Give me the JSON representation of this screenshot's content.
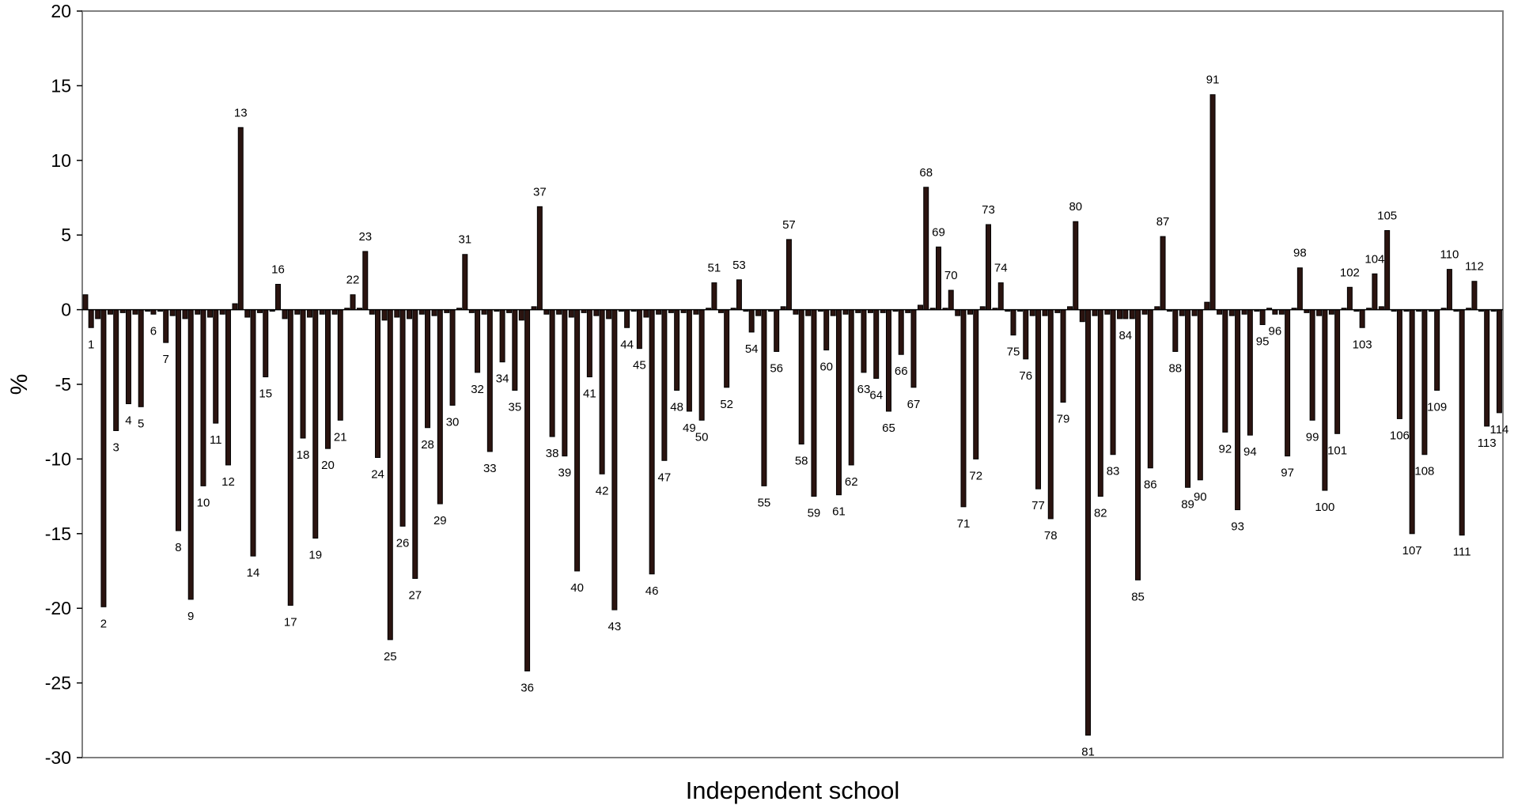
{
  "chart_data": {
    "type": "bar",
    "title": "",
    "xlabel": "Independent school",
    "ylabel": "%",
    "ylim": [
      -30,
      20
    ],
    "y_ticks": [
      20,
      15,
      10,
      5,
      0,
      -5,
      -10,
      -15,
      -20,
      -25,
      -30
    ],
    "grid": false,
    "legend": "none",
    "bar_color": "#2b1410",
    "bar_stroke": "#000000",
    "label_for_school": "value",
    "schools": [
      {
        "label": "1",
        "minor": 1.0,
        "value": -1.2
      },
      {
        "label": "2",
        "minor": -0.6,
        "value": -19.9
      },
      {
        "label": "3",
        "minor": -0.3,
        "value": -8.1
      },
      {
        "label": "4",
        "minor": -0.2,
        "value": -6.3
      },
      {
        "label": "5",
        "minor": -0.3,
        "value": -6.5
      },
      {
        "label": "6",
        "minor": -0.1,
        "value": -0.3
      },
      {
        "label": "7",
        "minor": -0.1,
        "value": -2.2
      },
      {
        "label": "8",
        "minor": -0.4,
        "value": -14.8
      },
      {
        "label": "9",
        "minor": -0.6,
        "value": -19.4
      },
      {
        "label": "10",
        "minor": -0.3,
        "value": -11.8
      },
      {
        "label": "11",
        "minor": -0.5,
        "value": -7.6
      },
      {
        "label": "12",
        "minor": -0.3,
        "value": -10.4
      },
      {
        "label": "13",
        "minor": 0.4,
        "value": 12.2
      },
      {
        "label": "14",
        "minor": -0.5,
        "value": -16.5
      },
      {
        "label": "15",
        "minor": -0.2,
        "value": -4.5
      },
      {
        "label": "16",
        "minor": -0.1,
        "value": 1.7
      },
      {
        "label": "17",
        "minor": -0.6,
        "value": -19.8
      },
      {
        "label": "18",
        "minor": -0.3,
        "value": -8.6
      },
      {
        "label": "19",
        "minor": -0.5,
        "value": -15.3
      },
      {
        "label": "20",
        "minor": -0.3,
        "value": -9.3
      },
      {
        "label": "21",
        "minor": -0.3,
        "value": -7.4
      },
      {
        "label": "22",
        "minor": 0.1,
        "value": 1.0
      },
      {
        "label": "23",
        "minor": 0.1,
        "value": 3.9
      },
      {
        "label": "24",
        "minor": -0.3,
        "value": -9.9
      },
      {
        "label": "25",
        "minor": -0.7,
        "value": -22.1
      },
      {
        "label": "26",
        "minor": -0.5,
        "value": -14.5
      },
      {
        "label": "27",
        "minor": -0.6,
        "value": -18.0
      },
      {
        "label": "28",
        "minor": -0.3,
        "value": -7.9
      },
      {
        "label": "29",
        "minor": -0.4,
        "value": -13.0
      },
      {
        "label": "30",
        "minor": -0.2,
        "value": -6.4
      },
      {
        "label": "31",
        "minor": 0.1,
        "value": 3.7
      },
      {
        "label": "32",
        "minor": -0.2,
        "value": -4.2
      },
      {
        "label": "33",
        "minor": -0.3,
        "value": -9.5
      },
      {
        "label": "34",
        "minor": -0.1,
        "value": -3.5
      },
      {
        "label": "35",
        "minor": -0.2,
        "value": -5.4
      },
      {
        "label": "36",
        "minor": -0.7,
        "value": -24.2
      },
      {
        "label": "37",
        "minor": 0.2,
        "value": 6.9
      },
      {
        "label": "38",
        "minor": -0.3,
        "value": -8.5
      },
      {
        "label": "39",
        "minor": -0.3,
        "value": -9.8
      },
      {
        "label": "40",
        "minor": -0.5,
        "value": -17.5
      },
      {
        "label": "41",
        "minor": -0.2,
        "value": -4.5
      },
      {
        "label": "42",
        "minor": -0.4,
        "value": -11.0
      },
      {
        "label": "43",
        "minor": -0.6,
        "value": -20.1
      },
      {
        "label": "44",
        "minor": -0.1,
        "value": -1.2
      },
      {
        "label": "45",
        "minor": -0.1,
        "value": -2.6
      },
      {
        "label": "46",
        "minor": -0.5,
        "value": -17.7
      },
      {
        "label": "47",
        "minor": -0.3,
        "value": -10.1
      },
      {
        "label": "48",
        "minor": -0.2,
        "value": -5.4
      },
      {
        "label": "49",
        "minor": -0.2,
        "value": -6.8
      },
      {
        "label": "50",
        "minor": -0.3,
        "value": -7.4
      },
      {
        "label": "51",
        "minor": 0.1,
        "value": 1.8
      },
      {
        "label": "52",
        "minor": -0.2,
        "value": -5.2
      },
      {
        "label": "53",
        "minor": 0.1,
        "value": 2.0
      },
      {
        "label": "54",
        "minor": -0.1,
        "value": -1.5
      },
      {
        "label": "55",
        "minor": -0.4,
        "value": -11.8
      },
      {
        "label": "56",
        "minor": -0.1,
        "value": -2.8
      },
      {
        "label": "57",
        "minor": 0.2,
        "value": 4.7
      },
      {
        "label": "58",
        "minor": -0.3,
        "value": -9.0
      },
      {
        "label": "59",
        "minor": -0.4,
        "value": -12.5
      },
      {
        "label": "60",
        "minor": -0.1,
        "value": -2.7
      },
      {
        "label": "61",
        "minor": -0.4,
        "value": -12.4
      },
      {
        "label": "62",
        "minor": -0.3,
        "value": -10.4
      },
      {
        "label": "63",
        "minor": -0.2,
        "value": -4.2
      },
      {
        "label": "64",
        "minor": -0.2,
        "value": -4.6
      },
      {
        "label": "65",
        "minor": -0.2,
        "value": -6.8
      },
      {
        "label": "66",
        "minor": -0.1,
        "value": -3.0
      },
      {
        "label": "67",
        "minor": -0.2,
        "value": -5.2
      },
      {
        "label": "68",
        "minor": 0.3,
        "value": 8.2
      },
      {
        "label": "69",
        "minor": 0.1,
        "value": 4.2
      },
      {
        "label": "70",
        "minor": 0.1,
        "value": 1.3
      },
      {
        "label": "71",
        "minor": -0.4,
        "value": -13.2
      },
      {
        "label": "72",
        "minor": -0.3,
        "value": -10.0
      },
      {
        "label": "73",
        "minor": 0.2,
        "value": 5.7
      },
      {
        "label": "74",
        "minor": 0.1,
        "value": 1.8
      },
      {
        "label": "75",
        "minor": -0.1,
        "value": -1.7
      },
      {
        "label": "76",
        "minor": -0.1,
        "value": -3.3
      },
      {
        "label": "77",
        "minor": -0.4,
        "value": -12.0
      },
      {
        "label": "78",
        "minor": -0.4,
        "value": -14.0
      },
      {
        "label": "79",
        "minor": -0.2,
        "value": -6.2
      },
      {
        "label": "80",
        "minor": 0.2,
        "value": 5.9
      },
      {
        "label": "81",
        "minor": -0.8,
        "value": -28.5
      },
      {
        "label": "82",
        "minor": -0.4,
        "value": -12.5
      },
      {
        "label": "83",
        "minor": -0.3,
        "value": -9.7
      },
      {
        "label": "84",
        "minor": -0.6,
        "value": -0.6
      },
      {
        "label": "85",
        "minor": -0.6,
        "value": -18.1
      },
      {
        "label": "86",
        "minor": -0.3,
        "value": -10.6
      },
      {
        "label": "87",
        "minor": 0.2,
        "value": 4.9
      },
      {
        "label": "88",
        "minor": -0.1,
        "value": -2.8
      },
      {
        "label": "89",
        "minor": -0.4,
        "value": -11.9
      },
      {
        "label": "90",
        "minor": -0.4,
        "value": -11.4
      },
      {
        "label": "91",
        "minor": 0.5,
        "value": 14.4
      },
      {
        "label": "92",
        "minor": -0.3,
        "value": -8.2
      },
      {
        "label": "93",
        "minor": -0.4,
        "value": -13.4
      },
      {
        "label": "94",
        "minor": -0.3,
        "value": -8.4
      },
      {
        "label": "95",
        "minor": -0.1,
        "value": -1.0
      },
      {
        "label": "96",
        "minor": 0.1,
        "value": -0.3
      },
      {
        "label": "97",
        "minor": -0.3,
        "value": -9.8
      },
      {
        "label": "98",
        "minor": 0.1,
        "value": 2.8
      },
      {
        "label": "99",
        "minor": -0.2,
        "value": -7.4
      },
      {
        "label": "100",
        "minor": -0.4,
        "value": -12.1
      },
      {
        "label": "101",
        "minor": -0.3,
        "value": -8.3
      },
      {
        "label": "102",
        "minor": 0.1,
        "value": 1.5
      },
      {
        "label": "103",
        "minor": -0.1,
        "value": -1.2
      },
      {
        "label": "104",
        "minor": 0.1,
        "value": 2.4
      },
      {
        "label": "105",
        "minor": 0.2,
        "value": 5.3
      },
      {
        "label": "106",
        "minor": -0.1,
        "value": -7.3
      },
      {
        "label": "107",
        "minor": -0.1,
        "value": -15.0
      },
      {
        "label": "108",
        "minor": -0.1,
        "value": -9.7
      },
      {
        "label": "109",
        "minor": -0.1,
        "value": -5.4
      },
      {
        "label": "110",
        "minor": 0.1,
        "value": 2.7
      },
      {
        "label": "111",
        "minor": -0.1,
        "value": -15.1
      },
      {
        "label": "112",
        "minor": 0.1,
        "value": 1.9
      },
      {
        "label": "113",
        "minor": -0.1,
        "value": -7.8
      },
      {
        "label": "114",
        "minor": -0.1,
        "value": -6.9
      }
    ]
  }
}
